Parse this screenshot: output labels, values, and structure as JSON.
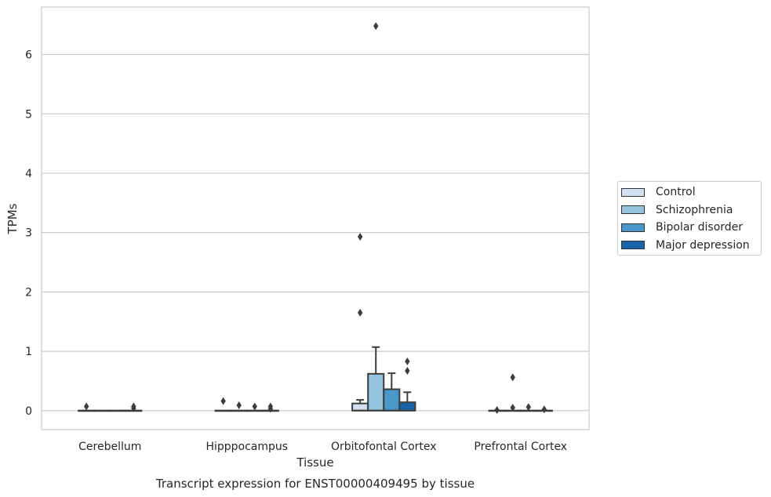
{
  "chart_data": {
    "type": "box",
    "title": "Transcript expression for ENST00000409495 by tissue",
    "xlabel": "Tissue",
    "ylabel": "TPMs",
    "ylim": [
      -0.32,
      6.8
    ],
    "yticks": [
      0,
      1,
      2,
      3,
      4,
      5,
      6
    ],
    "grid": true,
    "legend_position": "right",
    "categories": [
      "Cerebellum",
      "Hipppocampus",
      "Orbitofontal Cortex",
      "Prefrontal Cortex"
    ],
    "series": [
      {
        "name": "Control",
        "color": "#d0e1f2",
        "boxes": [
          {
            "q1": 0,
            "median": 0,
            "q3": 0,
            "whisker_low": 0,
            "whisker_high": 0,
            "outliers": [
              0.07
            ]
          },
          {
            "q1": 0,
            "median": 0,
            "q3": 0,
            "whisker_low": 0,
            "whisker_high": 0,
            "outliers": [
              0.16
            ]
          },
          {
            "q1": 0,
            "median": 0,
            "q3": 0.12,
            "whisker_low": 0,
            "whisker_high": 0.18,
            "outliers": [
              1.65,
              2.93
            ]
          },
          {
            "q1": 0,
            "median": 0,
            "q3": 0,
            "whisker_low": 0,
            "whisker_high": 0,
            "outliers": [
              0.01
            ]
          }
        ]
      },
      {
        "name": "Schizophrenia",
        "color": "#94c4df",
        "boxes": [
          {
            "q1": 0,
            "median": 0,
            "q3": 0,
            "whisker_low": 0,
            "whisker_high": 0,
            "outliers": []
          },
          {
            "q1": 0,
            "median": 0,
            "q3": 0,
            "whisker_low": 0,
            "whisker_high": 0,
            "outliers": [
              0.09
            ]
          },
          {
            "q1": 0,
            "median": 0,
            "q3": 0.62,
            "whisker_low": 0,
            "whisker_high": 1.07,
            "outliers": [
              6.48
            ]
          },
          {
            "q1": 0,
            "median": 0,
            "q3": 0,
            "whisker_low": 0,
            "whisker_high": 0,
            "outliers": [
              0.56,
              0.05
            ]
          }
        ]
      },
      {
        "name": "Bipolar disorder",
        "color": "#4a98c9",
        "boxes": [
          {
            "q1": 0,
            "median": 0,
            "q3": 0,
            "whisker_low": 0,
            "whisker_high": 0,
            "outliers": []
          },
          {
            "q1": 0,
            "median": 0,
            "q3": 0,
            "whisker_low": 0,
            "whisker_high": 0,
            "outliers": [
              0.07
            ]
          },
          {
            "q1": 0,
            "median": 0,
            "q3": 0.36,
            "whisker_low": 0,
            "whisker_high": 0.63,
            "outliers": []
          },
          {
            "q1": 0,
            "median": 0,
            "q3": 0,
            "whisker_low": 0,
            "whisker_high": 0,
            "outliers": [
              0.06
            ]
          }
        ]
      },
      {
        "name": "Major depression",
        "color": "#1764ab",
        "boxes": [
          {
            "q1": 0,
            "median": 0,
            "q3": 0,
            "whisker_low": 0,
            "whisker_high": 0,
            "outliers": [
              0.07,
              0.04
            ]
          },
          {
            "q1": 0,
            "median": 0,
            "q3": 0,
            "whisker_low": 0,
            "whisker_high": 0,
            "outliers": [
              0.07,
              0.03
            ]
          },
          {
            "q1": 0,
            "median": 0,
            "q3": 0.14,
            "whisker_low": 0,
            "whisker_high": 0.31,
            "outliers": [
              0.67,
              0.83
            ]
          },
          {
            "q1": 0,
            "median": 0,
            "q3": 0,
            "whisker_low": 0,
            "whisker_high": 0,
            "outliers": [
              0.02
            ]
          }
        ]
      }
    ]
  }
}
